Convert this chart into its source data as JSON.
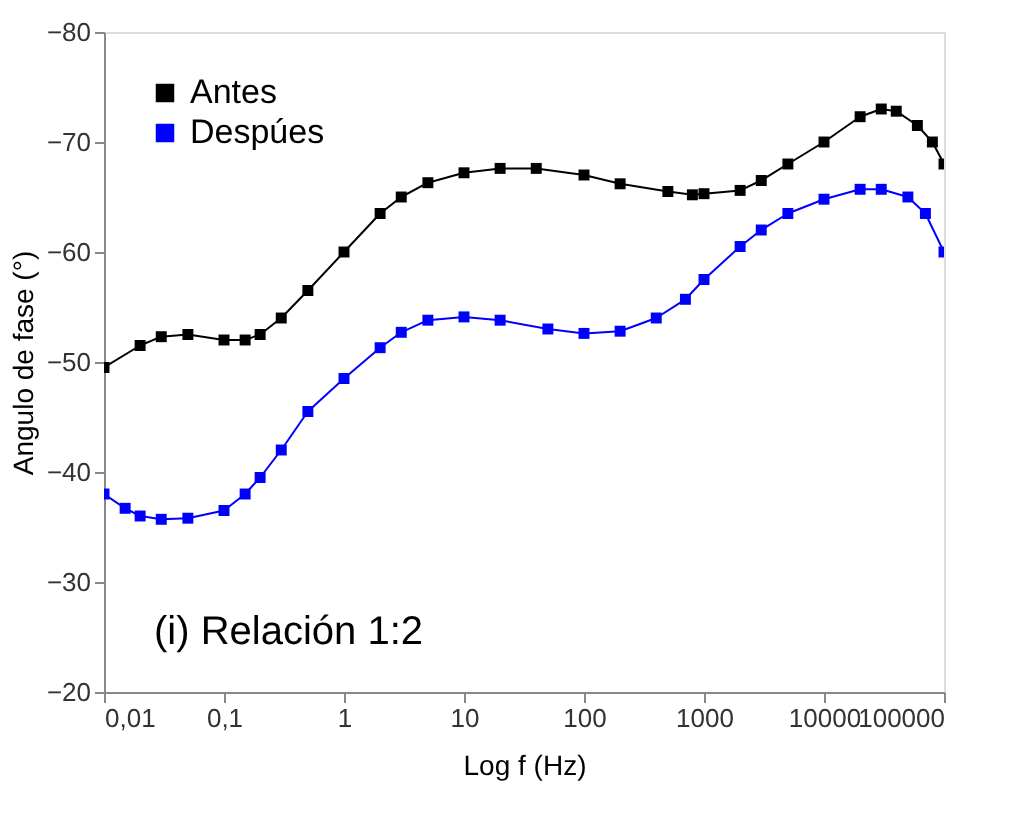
{
  "chart_data": {
    "type": "line",
    "xlabel": "Log f (Hz)",
    "ylabel": "Angulo de fase (°)",
    "log": "x",
    "marker": "square",
    "line_style": "solid",
    "grid": false,
    "legend": "top left",
    "annotations": [
      "(i)  Relación 1:2"
    ],
    "xlim": [
      0.01,
      100000
    ],
    "xticks": [
      {
        "value": 0.01,
        "label": "0,01"
      },
      {
        "value": 0.1,
        "label": "0,1"
      },
      1,
      10,
      100,
      1000,
      10000,
      100000
    ],
    "ylim": [
      -20,
      -80
    ],
    "yticks": [
      -80,
      -70,
      -60,
      -50,
      -40,
      -30,
      -20
    ],
    "series": [
      {
        "name": "Antes",
        "color": "#000000",
        "x": [
          0.01,
          0.02,
          0.03,
          0.05,
          0.1,
          0.15,
          0.2,
          0.3,
          0.5,
          1,
          2,
          3,
          5,
          10,
          20,
          40,
          100,
          200,
          500,
          800,
          1000,
          2000,
          3000,
          5000,
          10000,
          20000,
          30000,
          40000,
          60000,
          80000,
          100000
        ],
        "values": [
          -49.5,
          -51.5,
          -52.3,
          -52.5,
          -52,
          -52,
          -52.5,
          -54,
          -56.5,
          -60,
          -63.5,
          -65,
          -66.3,
          -67.2,
          -67.6,
          -67.6,
          -67,
          -66.2,
          -65.5,
          -65.2,
          -65.3,
          -65.6,
          -66.5,
          -68,
          -70,
          -72.3,
          -73,
          -72.8,
          -71.5,
          -70,
          -68
        ]
      },
      {
        "name": "Despúes",
        "color": "#0000ff",
        "x": [
          0.01,
          0.015,
          0.02,
          0.03,
          0.05,
          0.1,
          0.15,
          0.2,
          0.3,
          0.5,
          1,
          2,
          3,
          5,
          10,
          20,
          50,
          100,
          200,
          400,
          700,
          1000,
          2000,
          3000,
          5000,
          10000,
          20000,
          30000,
          50000,
          70000,
          100000
        ],
        "values": [
          -38,
          -36.7,
          -36,
          -35.7,
          -35.8,
          -36.5,
          -38,
          -39.5,
          -42,
          -45.5,
          -48.5,
          -51.3,
          -52.7,
          -53.8,
          -54.1,
          -53.8,
          -53,
          -52.6,
          -52.8,
          -54,
          -55.7,
          -57.5,
          -60.5,
          -62,
          -63.5,
          -64.8,
          -65.7,
          -65.7,
          -65,
          -63.5,
          -60
        ]
      }
    ]
  }
}
